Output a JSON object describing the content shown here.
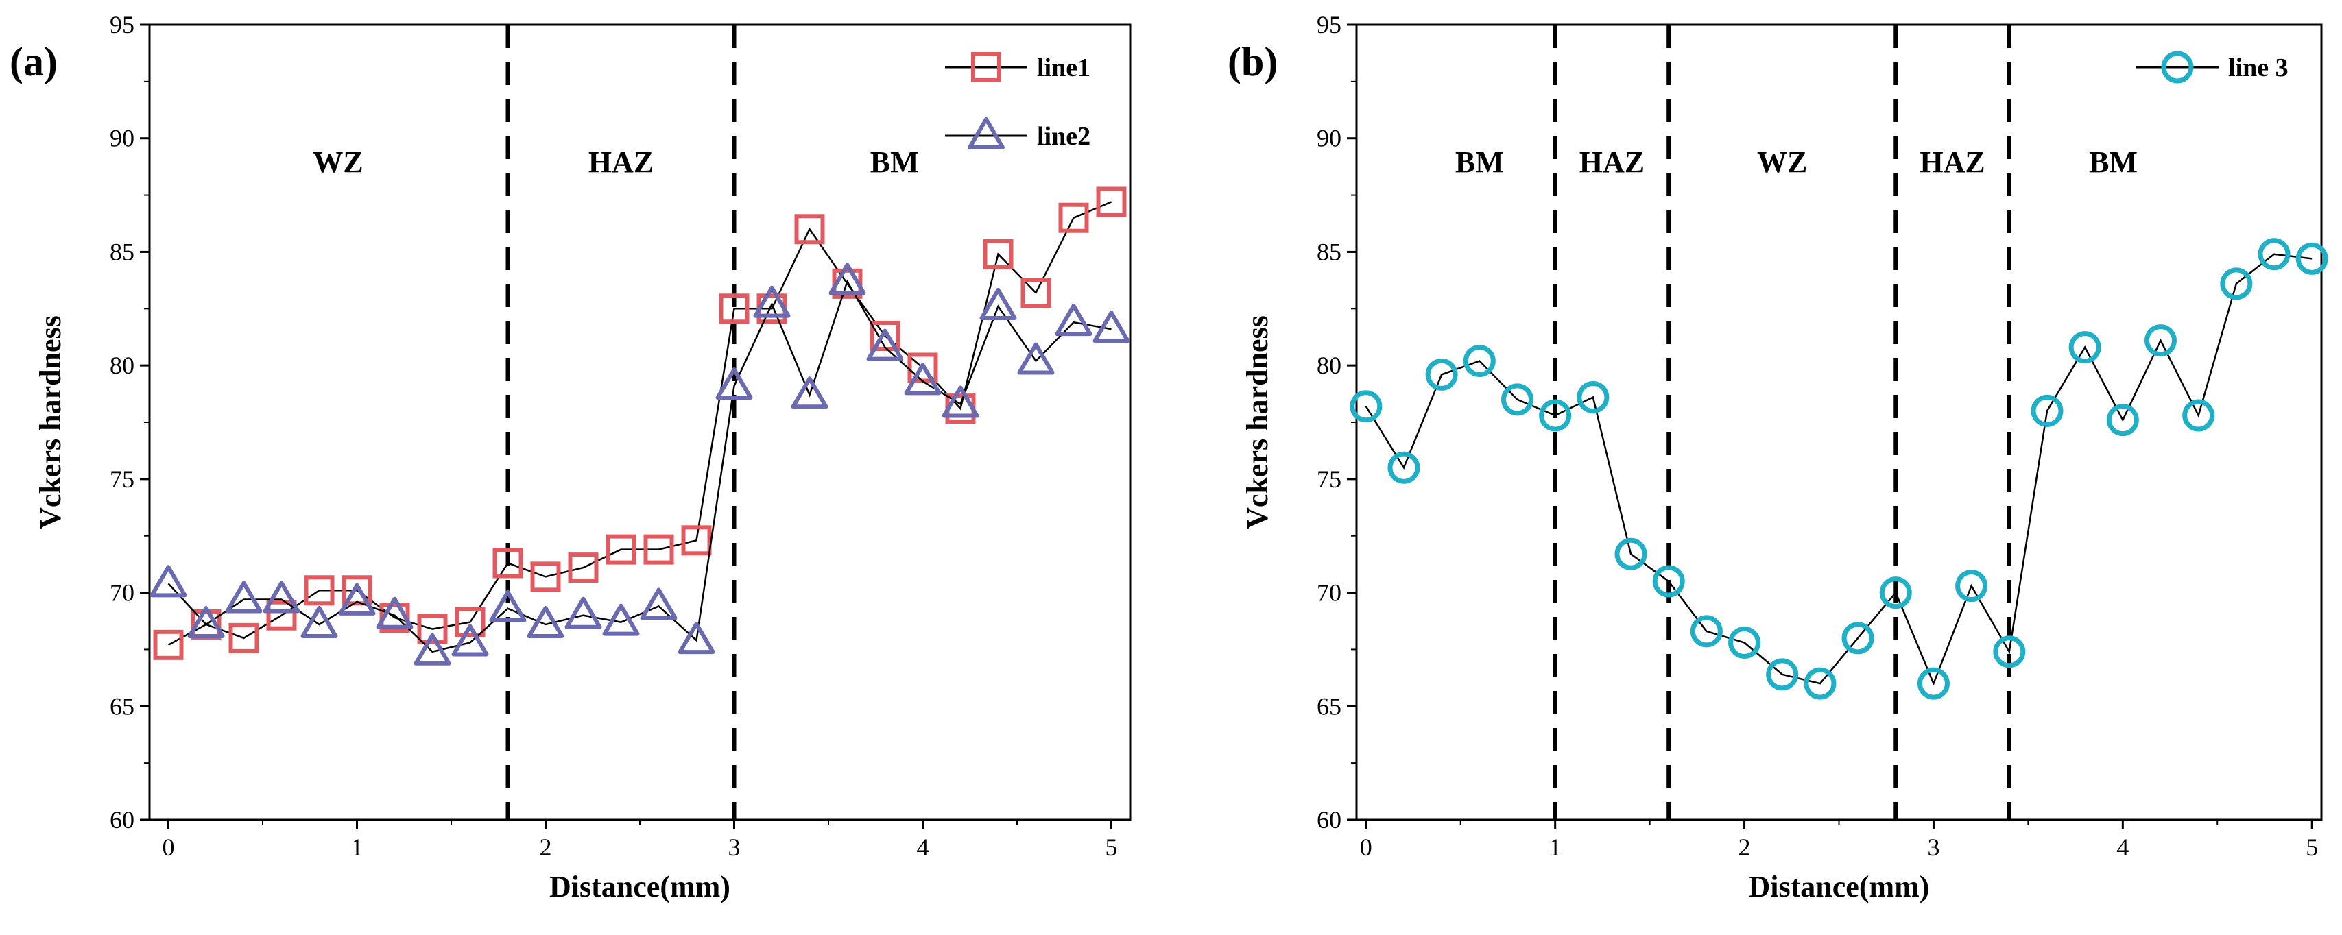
{
  "chart_data": [
    {
      "type": "line",
      "panel_label": "(a)",
      "xlabel": "Distance(mm)",
      "ylabel": "Vckers hardness",
      "xlim": [
        -0.1,
        5.1
      ],
      "ylim": [
        60,
        95
      ],
      "xticks": [
        0,
        1,
        2,
        3,
        4,
        5
      ],
      "yticks": [
        60,
        65,
        70,
        75,
        80,
        85,
        90,
        95
      ],
      "grid": false,
      "legend_position": "top-right",
      "boundaries": [
        1.8,
        3.0
      ],
      "regions": [
        {
          "label": "WZ",
          "x": 0.9,
          "y": 89
        },
        {
          "label": "HAZ",
          "x": 2.4,
          "y": 89
        },
        {
          "label": "BM",
          "x": 3.85,
          "y": 89
        }
      ],
      "series": [
        {
          "name": "line1",
          "marker": "square",
          "color": "#e05a60",
          "x": [
            0,
            0.2,
            0.4,
            0.6,
            0.8,
            1.0,
            1.2,
            1.4,
            1.6,
            1.8,
            2.0,
            2.2,
            2.4,
            2.6,
            2.8,
            3.0,
            3.2,
            3.4,
            3.6,
            3.8,
            4.0,
            4.2,
            4.4,
            4.6,
            4.8,
            5.0
          ],
          "y": [
            67.7,
            68.6,
            68.0,
            69.0,
            70.1,
            70.1,
            68.9,
            68.4,
            68.7,
            71.3,
            70.7,
            71.1,
            71.9,
            71.9,
            72.3,
            82.5,
            82.5,
            86.0,
            83.6,
            81.3,
            79.9,
            78.1,
            84.9,
            83.2,
            86.5,
            87.2
          ]
        },
        {
          "name": "line2",
          "marker": "triangle",
          "color": "#6a6ab0",
          "x": [
            0,
            0.2,
            0.4,
            0.6,
            0.8,
            1.0,
            1.2,
            1.4,
            1.6,
            1.8,
            2.0,
            2.2,
            2.4,
            2.6,
            2.8,
            3.0,
            3.2,
            3.4,
            3.6,
            3.8,
            4.0,
            4.2,
            4.4,
            4.6,
            4.8,
            5.0
          ],
          "y": [
            70.4,
            68.6,
            69.7,
            69.7,
            68.6,
            69.6,
            69.0,
            67.4,
            67.8,
            69.3,
            68.6,
            69.0,
            68.7,
            69.4,
            67.9,
            79.1,
            82.7,
            78.7,
            83.7,
            80.8,
            79.3,
            78.3,
            82.6,
            80.2,
            81.9,
            81.6
          ]
        }
      ]
    },
    {
      "type": "line",
      "panel_label": "(b)",
      "xlabel": "Distance(mm)",
      "ylabel": "Vckers hardness",
      "xlim": [
        -0.05,
        5.05
      ],
      "ylim": [
        60,
        95
      ],
      "xticks": [
        0,
        1,
        2,
        3,
        4,
        5
      ],
      "yticks": [
        60,
        65,
        70,
        75,
        80,
        85,
        90,
        95
      ],
      "grid": false,
      "legend_position": "top-right",
      "boundaries": [
        1.0,
        1.6,
        2.8,
        3.4
      ],
      "regions": [
        {
          "label": "BM",
          "x": 0.6,
          "y": 89
        },
        {
          "label": "HAZ",
          "x": 1.3,
          "y": 89
        },
        {
          "label": "WZ",
          "x": 2.2,
          "y": 89
        },
        {
          "label": "HAZ",
          "x": 3.1,
          "y": 89
        },
        {
          "label": "BM",
          "x": 3.95,
          "y": 89
        }
      ],
      "series": [
        {
          "name": "line 3",
          "marker": "circle",
          "color": "#1fb0c8",
          "x": [
            0,
            0.2,
            0.4,
            0.6,
            0.8,
            1.0,
            1.2,
            1.4,
            1.6,
            1.8,
            2.0,
            2.2,
            2.4,
            2.6,
            2.8,
            3.0,
            3.2,
            3.4,
            3.6,
            3.8,
            4.0,
            4.2,
            4.4,
            4.6,
            4.8,
            5.0
          ],
          "y": [
            78.2,
            75.5,
            79.6,
            80.2,
            78.5,
            77.8,
            78.6,
            71.7,
            70.5,
            68.3,
            67.8,
            66.4,
            66.0,
            68.0,
            70.0,
            66.0,
            70.3,
            67.4,
            78.0,
            80.8,
            77.6,
            81.1,
            77.8,
            83.6,
            84.9,
            84.7
          ]
        }
      ]
    }
  ]
}
